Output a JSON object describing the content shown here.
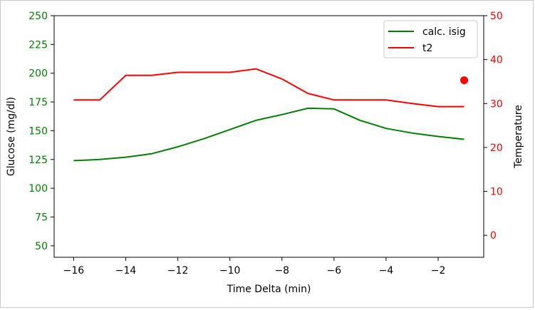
{
  "chart_data": {
    "type": "line",
    "xlabel": "Time Delta (min)",
    "xlim": [
      -16.75,
      -0.25
    ],
    "xticks": [
      -16,
      -14,
      -12,
      -10,
      -8,
      -6,
      -4,
      -2
    ],
    "xtick_labels": [
      "−16",
      "−14",
      "−12",
      "−10",
      "−8",
      "−6",
      "−4",
      "−2"
    ],
    "left_axis": {
      "label": "Glucose (mg/dl)",
      "color": "#008000",
      "ylim": [
        40,
        250
      ],
      "ticks": [
        50,
        75,
        100,
        125,
        150,
        175,
        200,
        225,
        250
      ],
      "tick_labels": [
        "50",
        "75",
        "100",
        "125",
        "150",
        "175",
        "200",
        "225",
        "250"
      ]
    },
    "right_axis": {
      "label": "Temperature",
      "color": "#ff0000",
      "ylim": [
        -5,
        50
      ],
      "ticks": [
        0,
        10,
        20,
        30,
        40,
        50
      ],
      "tick_labels": [
        "0",
        "10",
        "20",
        "30",
        "40",
        "50"
      ]
    },
    "series": [
      {
        "name": "calc. isig",
        "axis": "left",
        "color": "#008000",
        "x": [
          -16,
          -15,
          -14,
          -13,
          -12,
          -11,
          -10,
          -9,
          -8,
          -7,
          -6,
          -5,
          -4,
          -3,
          -2,
          -1
        ],
        "y": [
          124,
          125,
          127,
          130,
          136,
          143,
          151,
          159,
          164,
          169.5,
          169,
          159,
          152,
          148,
          145,
          142.5
        ]
      },
      {
        "name": "t2",
        "axis": "right",
        "color": "#ff0000",
        "x": [
          -16,
          -15,
          -14,
          -13,
          -12,
          -11,
          -10,
          -9,
          -8,
          -7,
          -6,
          -5,
          -4,
          -3,
          -2,
          -1
        ],
        "y": [
          30.8,
          30.8,
          36.4,
          36.4,
          37.1,
          37.1,
          37.1,
          37.9,
          35.6,
          32.3,
          30.8,
          30.8,
          30.8,
          30.0,
          29.3,
          29.3
        ]
      }
    ],
    "markers": [
      {
        "axis": "right",
        "color": "#ff0000",
        "x": -1,
        "y": 35.3
      }
    ],
    "legend": {
      "placement": "top-right",
      "entries": [
        "calc. isig",
        "t2"
      ]
    },
    "grid": false
  }
}
